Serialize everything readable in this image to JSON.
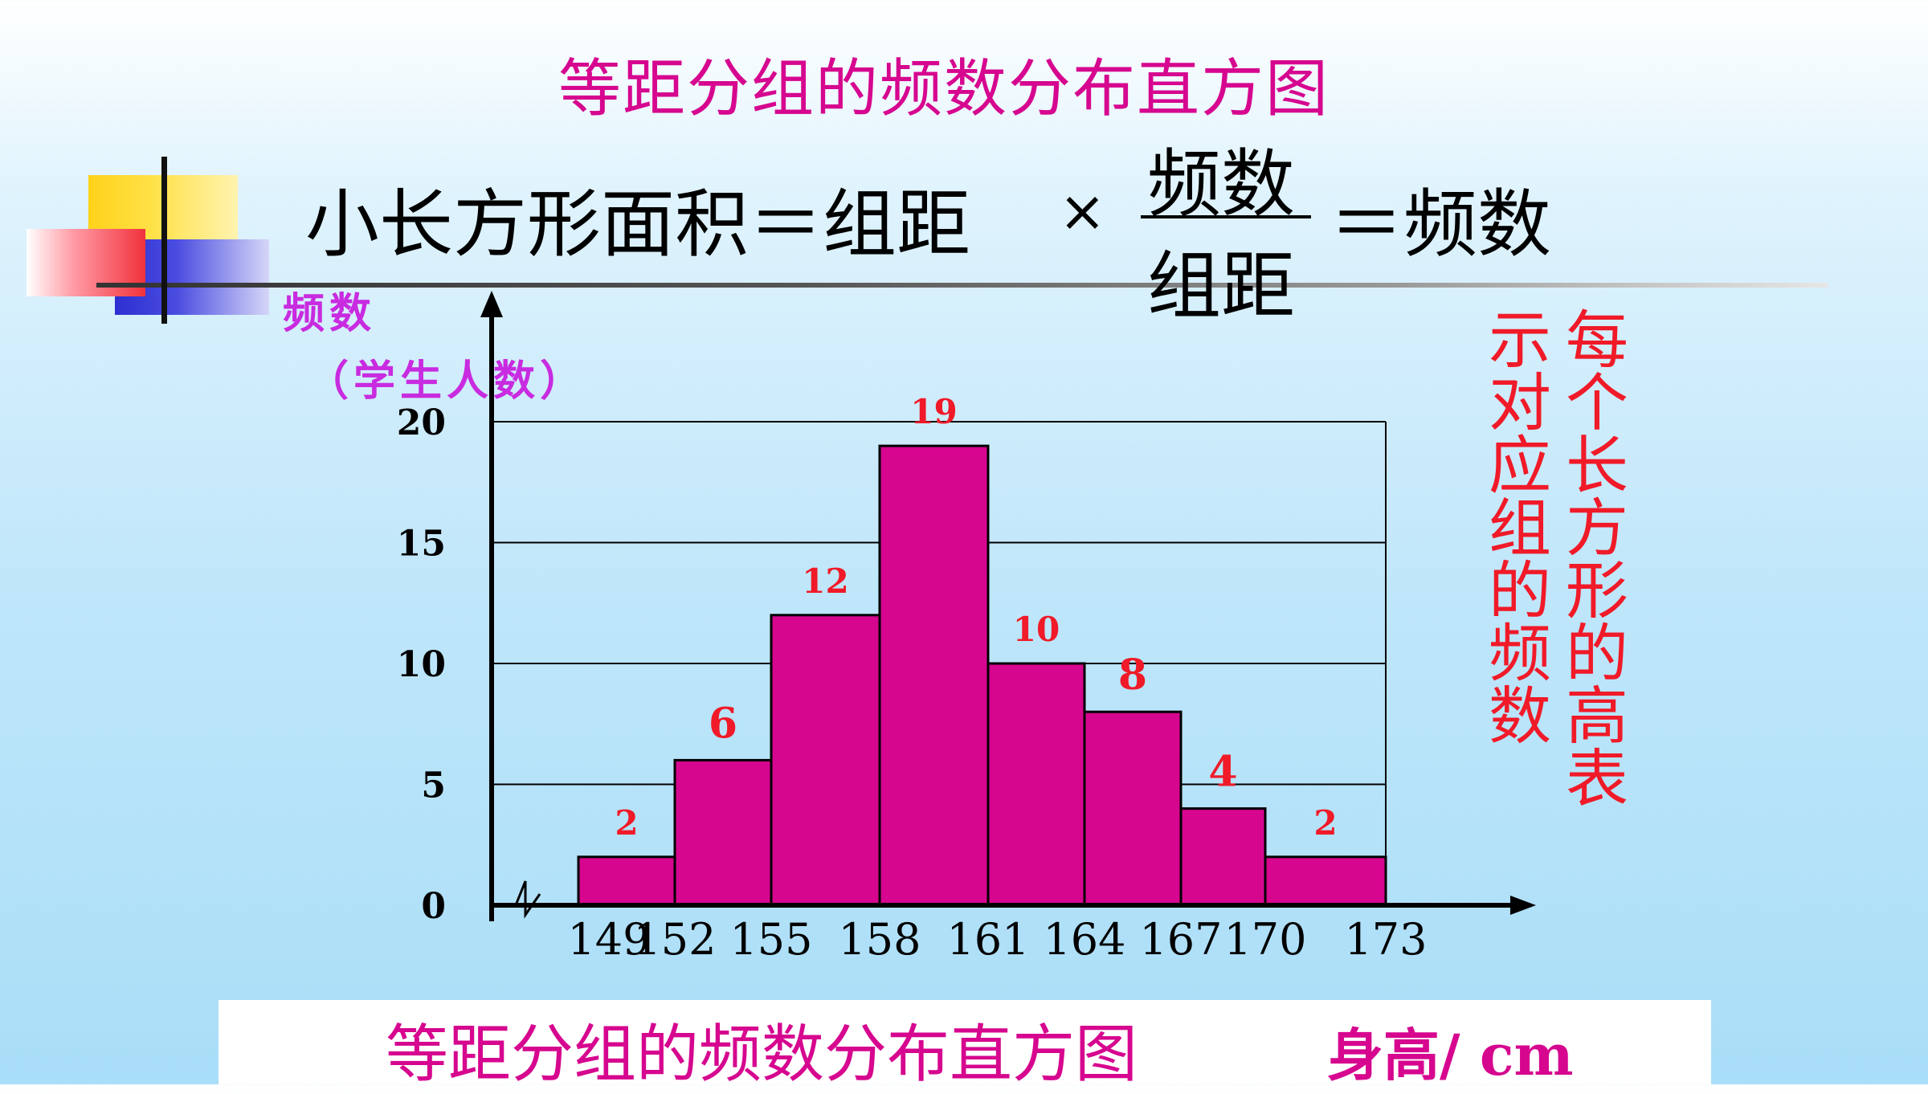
{
  "title_top": "等距分组的频数分布直方图",
  "formula": {
    "left": "小长方形面积＝组距",
    "times": "×",
    "numerator": "频数",
    "denominator": "组距",
    "right": "＝频数"
  },
  "side_note": {
    "col1": "每个长方形的高表",
    "col2": "示对应组的频数"
  },
  "title_bottom": "等距分组的频数分布直方图",
  "colors": {
    "bar": "#d6068f",
    "title": "#d6068f",
    "data_label": "#f01a28",
    "y_title": "#c82be0"
  },
  "chart_data": {
    "type": "histogram",
    "ylabel_lines": [
      "频数",
      "（学生人数）"
    ],
    "xlabel": "身高/ cm",
    "bin_edges": [
      149,
      152,
      155,
      158,
      161,
      164,
      167,
      170,
      173
    ],
    "bin_edge_labels": [
      "149",
      "152",
      "155",
      "158",
      "161",
      "164",
      "167",
      "170",
      "173"
    ],
    "values": [
      2,
      6,
      12,
      19,
      10,
      8,
      4,
      2
    ],
    "value_labels": [
      "2",
      "6",
      "12",
      "19",
      "10",
      "8",
      "4",
      "2"
    ],
    "ylim": [
      0,
      20
    ],
    "yticks": [
      0,
      5,
      10,
      15,
      20
    ],
    "ytick_labels": [
      "0",
      "5",
      "10",
      "15",
      "20"
    ],
    "grid": true,
    "axis_break": true
  }
}
